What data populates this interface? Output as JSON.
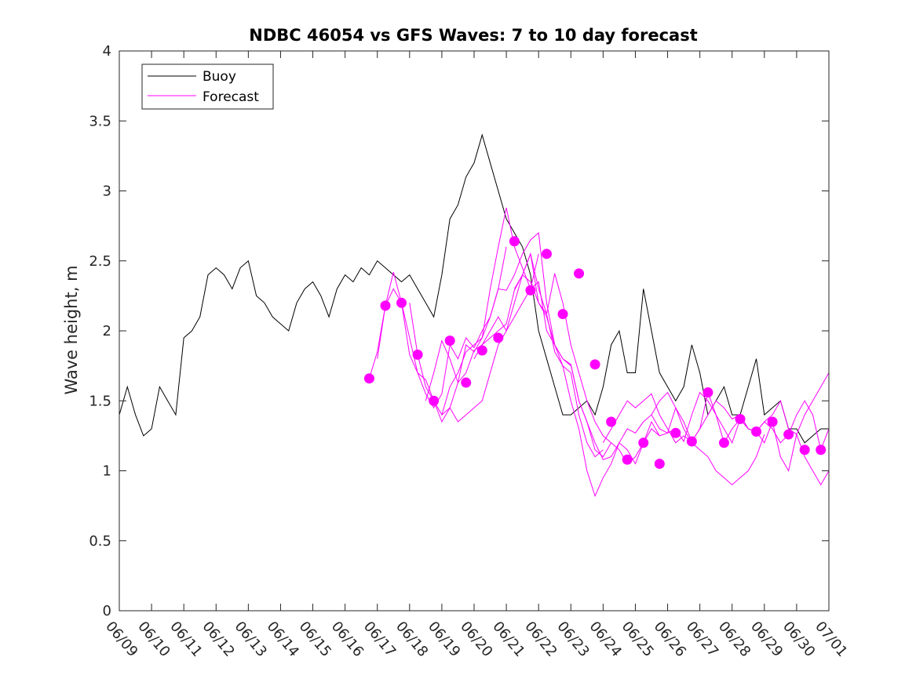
{
  "chart_data": {
    "type": "line",
    "title": "NDBC 46054 vs GFS Waves: 7 to 10 day forecast",
    "xlabel": "",
    "ylabel": "Wave height, m",
    "x_ticks": [
      "06/09",
      "06/10",
      "06/11",
      "06/12",
      "06/13",
      "06/14",
      "06/15",
      "06/16",
      "06/17",
      "06/18",
      "06/19",
      "06/20",
      "06/21",
      "06/22",
      "06/23",
      "06/24",
      "06/25",
      "06/26",
      "06/27",
      "06/28",
      "06/29",
      "06/30",
      "07/01"
    ],
    "xlim": [
      0,
      22
    ],
    "ylim": [
      0,
      4
    ],
    "y_ticks": [
      "0",
      "0.5",
      "1",
      "1.5",
      "2",
      "2.5",
      "3",
      "3.5",
      "4"
    ],
    "grid": false,
    "legend_position": "top-left",
    "colors": {
      "buoy": "#000000",
      "forecast": "#ff00ff",
      "axis": "#262626"
    },
    "series": [
      {
        "name": "Buoy",
        "style": "line",
        "x": [
          0,
          0.25,
          0.5,
          0.75,
          1,
          1.25,
          1.5,
          1.75,
          2,
          2.25,
          2.5,
          2.75,
          3,
          3.25,
          3.5,
          3.75,
          4,
          4.25,
          4.5,
          4.75,
          5,
          5.25,
          5.5,
          5.75,
          6,
          6.25,
          6.5,
          6.75,
          7,
          7.25,
          7.5,
          7.75,
          8,
          8.25,
          8.5,
          8.75,
          9,
          9.25,
          9.5,
          9.75,
          10,
          10.25,
          10.5,
          10.75,
          11,
          11.25,
          11.5,
          11.75,
          12,
          12.25,
          12.5,
          12.75,
          13,
          13.25,
          13.5,
          13.75,
          14,
          14.25,
          14.5,
          14.75,
          15,
          15.25,
          15.5,
          15.75,
          16,
          16.25,
          16.5,
          16.75,
          17,
          17.25,
          17.5,
          17.75,
          18,
          18.25,
          18.5,
          18.75,
          19,
          19.25,
          19.5,
          19.75,
          20,
          20.25,
          20.5,
          20.75,
          21,
          21.25,
          21.5,
          21.75,
          22
        ],
        "values": [
          1.4,
          1.6,
          1.4,
          1.25,
          1.3,
          1.6,
          1.5,
          1.4,
          1.95,
          2.0,
          2.1,
          2.4,
          2.45,
          2.4,
          2.3,
          2.45,
          2.5,
          2.25,
          2.2,
          2.1,
          2.05,
          2.0,
          2.2,
          2.3,
          2.35,
          2.25,
          2.1,
          2.3,
          2.4,
          2.35,
          2.45,
          2.4,
          2.5,
          2.45,
          2.4,
          2.35,
          2.4,
          2.3,
          2.2,
          2.1,
          2.4,
          2.8,
          2.9,
          3.1,
          3.2,
          3.4,
          3.2,
          3.0,
          2.8,
          2.7,
          2.6,
          2.4,
          2.0,
          1.8,
          1.6,
          1.4,
          1.4,
          1.45,
          1.5,
          1.4,
          1.6,
          1.9,
          2.0,
          1.7,
          1.7,
          2.3,
          2.0,
          1.7,
          1.6,
          1.5,
          1.6,
          1.9,
          1.7,
          1.4,
          1.5,
          1.6,
          1.4,
          1.4,
          1.6,
          1.8,
          1.4,
          1.45,
          1.5,
          1.3,
          1.3,
          1.2,
          1.25,
          1.3,
          1.3
        ]
      },
      {
        "name": "Forecast",
        "style": "line",
        "runs": [
          {
            "x": [
              7.75,
              8.0,
              8.25,
              8.5,
              8.75,
              9.0,
              9.25,
              9.5,
              9.75,
              10.0,
              10.25,
              10.5,
              10.75,
              11.0,
              11.25,
              11.5,
              11.75,
              12.0
            ],
            "y": [
              1.66,
              1.85,
              2.18,
              2.42,
              2.2,
              1.95,
              1.7,
              1.55,
              1.45,
              1.55,
              1.9,
              1.8,
              1.95,
              1.88,
              2.0,
              2.1,
              2.3,
              2.6
            ]
          },
          {
            "x": [
              8.0,
              8.25,
              8.5,
              8.75,
              9.0,
              9.25,
              9.5,
              9.75,
              10.0,
              10.25,
              10.5,
              10.75,
              11.0,
              11.25,
              11.5,
              11.75,
              12.0,
              12.25,
              12.5,
              12.75,
              13.0
            ],
            "y": [
              1.8,
              2.18,
              2.3,
              2.2,
              1.83,
              1.7,
              1.65,
              1.5,
              1.4,
              1.6,
              1.7,
              1.85,
              1.9,
              1.95,
              2.3,
              2.6,
              2.88,
              2.6,
              2.45,
              2.3,
              2.55
            ]
          },
          {
            "x": [
              9.0,
              9.25,
              9.5,
              9.75,
              10.0,
              10.25,
              10.5,
              10.75,
              11.0,
              11.25,
              11.5,
              11.75,
              12.0,
              12.25,
              12.5,
              12.75,
              13.0,
              13.25,
              13.5,
              13.75,
              14.0
            ],
            "y": [
              2.2,
              1.83,
              1.6,
              1.5,
              1.35,
              1.45,
              1.63,
              1.9,
              1.85,
              1.95,
              2.1,
              2.3,
              2.29,
              2.4,
              2.55,
              2.65,
              2.7,
              2.2,
              1.9,
              1.8,
              1.75
            ]
          },
          {
            "x": [
              9.5,
              9.75,
              10.0,
              10.25,
              10.5,
              10.75,
              11.0,
              11.25,
              11.5,
              11.75,
              12.0,
              12.25,
              12.5,
              12.75,
              13.0,
              13.25,
              13.5,
              13.75,
              14.0,
              14.25,
              14.5,
              14.75,
              15.0
            ],
            "y": [
              1.5,
              1.7,
              1.93,
              1.8,
              1.63,
              1.7,
              1.86,
              1.9,
              1.95,
              2.0,
              2.05,
              2.29,
              2.4,
              2.55,
              2.2,
              2.12,
              1.85,
              1.75,
              1.7,
              1.4,
              1.2,
              1.1,
              1.15
            ]
          },
          {
            "x": [
              10.0,
              10.25,
              10.5,
              10.75,
              11.0,
              11.25,
              11.5,
              11.75,
              12.0,
              12.25,
              12.5,
              12.75,
              13.0,
              13.25,
              13.5,
              13.75,
              14.0,
              14.25,
              14.5,
              14.75,
              15.0,
              15.25
            ],
            "y": [
              1.4,
              1.45,
              1.35,
              1.4,
              1.45,
              1.5,
              1.7,
              1.9,
              2.0,
              2.1,
              2.2,
              2.3,
              2.35,
              2.0,
              1.9,
              1.8,
              1.76,
              1.5,
              1.35,
              1.15,
              1.1,
              1.2
            ]
          },
          {
            "x": [
              11.0,
              11.25,
              11.5,
              11.75,
              12.0,
              12.25,
              12.5,
              12.75,
              13.0,
              13.25,
              13.5,
              13.75,
              14.0,
              14.25,
              14.5,
              14.75,
              15.0,
              15.25,
              15.5,
              15.75,
              16.0,
              16.25,
              16.5,
              16.75
            ],
            "y": [
              1.8,
              1.9,
              2.0,
              2.1,
              2.0,
              2.2,
              2.4,
              2.55,
              2.3,
              2.12,
              2.41,
              2.2,
              1.9,
              1.7,
              1.5,
              1.35,
              1.25,
              1.2,
              1.15,
              1.05,
              1.1,
              1.2,
              1.3,
              1.25
            ]
          },
          {
            "x": [
              12.25,
              12.5,
              12.75,
              13.0,
              13.25,
              13.5,
              13.75,
              14.0,
              14.25,
              14.5,
              14.75,
              15.0,
              15.25,
              15.5,
              15.75,
              16.0,
              16.25,
              16.5,
              16.75,
              17.0,
              17.25,
              17.5,
              17.75,
              18.0,
              18.25,
              18.5,
              18.75,
              19.0,
              19.25,
              19.5,
              19.75,
              20.0
            ],
            "y": [
              2.3,
              2.4,
              2.35,
              2.2,
              2.1,
              1.9,
              1.75,
              1.5,
              1.3,
              1.0,
              0.82,
              0.95,
              1.05,
              1.2,
              1.3,
              1.27,
              1.35,
              1.4,
              1.5,
              1.56,
              1.45,
              1.3,
              1.2,
              1.15,
              1.1,
              1.0,
              0.95,
              0.9,
              0.95,
              1.0,
              1.1,
              1.26
            ]
          },
          {
            "x": [
              14.0,
              14.25,
              14.5,
              14.75,
              15.0,
              15.25,
              15.5,
              15.75,
              16.0,
              16.25,
              16.5,
              16.75,
              17.0,
              17.25,
              17.5,
              17.75,
              18.0,
              18.25,
              18.5,
              18.75,
              19.0,
              19.25,
              19.5,
              19.75,
              20.0,
              20.25,
              20.5,
              20.75,
              21.0,
              21.25,
              21.5,
              21.75,
              22.0
            ],
            "y": [
              1.76,
              1.5,
              1.35,
              1.2,
              1.08,
              1.1,
              1.2,
              1.15,
              1.05,
              1.2,
              1.35,
              1.25,
              1.27,
              1.3,
              1.21,
              1.4,
              1.56,
              1.5,
              1.4,
              1.2,
              1.3,
              1.37,
              1.3,
              1.28,
              1.2,
              1.35,
              1.1,
              1.0,
              1.26,
              1.1,
              1.0,
              0.9,
              1.0
            ]
          },
          {
            "x": [
              15.0,
              15.25,
              15.5,
              15.75,
              16.0,
              16.25,
              16.5,
              16.75,
              17.0,
              17.25,
              17.5,
              17.75,
              18.0,
              18.25,
              18.5,
              18.75,
              19.0,
              19.25,
              19.5,
              19.75,
              20.0,
              20.25,
              20.5,
              20.75,
              21.0,
              21.25,
              21.5,
              21.75,
              22.0
            ],
            "y": [
              1.2,
              1.3,
              1.4,
              1.5,
              1.45,
              1.5,
              1.55,
              1.4,
              1.3,
              1.2,
              1.25,
              1.21,
              1.3,
              1.56,
              1.4,
              1.3,
              1.2,
              1.37,
              1.3,
              1.28,
              1.35,
              1.3,
              1.2,
              1.26,
              1.4,
              1.5,
              1.4,
              1.15,
              1.3
            ]
          },
          {
            "x": [
              16.5,
              16.75,
              17.0,
              17.25,
              17.5,
              17.75,
              18.0,
              18.25,
              18.5,
              18.75,
              19.0,
              19.25,
              19.5,
              19.75,
              20.0,
              20.25,
              20.5,
              20.75,
              21.0,
              21.25,
              21.5,
              21.75,
              22.0
            ],
            "y": [
              1.4,
              1.3,
              1.27,
              1.45,
              1.35,
              1.21,
              1.3,
              1.4,
              1.5,
              1.45,
              1.37,
              1.4,
              1.3,
              1.28,
              1.35,
              1.4,
              1.5,
              1.3,
              1.26,
              1.4,
              1.5,
              1.6,
              1.7
            ]
          }
        ]
      },
      {
        "name": "",
        "style": "markers",
        "color": "#ff00ff",
        "x": [
          7.75,
          8.25,
          8.75,
          9.25,
          9.75,
          10.25,
          10.75,
          11.25,
          11.75,
          12.25,
          12.75,
          13.25,
          13.75,
          14.25,
          14.75,
          15.25,
          15.75,
          16.25,
          16.75,
          17.25,
          17.75,
          18.25,
          18.75,
          19.25,
          19.75,
          20.25,
          20.75,
          21.25,
          21.75
        ],
        "y": [
          1.66,
          2.18,
          2.2,
          1.83,
          1.5,
          1.93,
          1.63,
          1.86,
          1.95,
          2.64,
          2.29,
          2.55,
          2.12,
          2.41,
          1.76,
          1.35,
          1.08,
          1.2,
          1.05,
          1.27,
          1.21,
          1.56,
          1.2,
          1.37,
          1.28,
          1.35,
          1.26,
          1.15,
          1.15
        ]
      }
    ]
  }
}
